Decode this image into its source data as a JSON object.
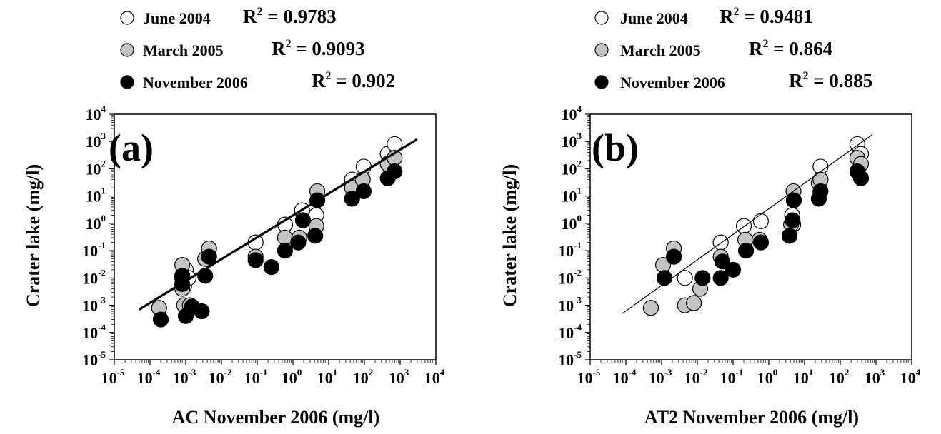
{
  "chart_data": [
    {
      "type": "scatter",
      "panel_label": "(a)",
      "xlabel": "AC November 2006 (mg/l)",
      "ylabel": "Crater lake (mg/l)",
      "x_scale": "log",
      "y_scale": "log",
      "xlim": [
        1e-05,
        10000
      ],
      "ylim": [
        1e-05,
        10000
      ],
      "x_ticks": [
        {
          "base": "10",
          "exp": "-5",
          "value": 1e-05
        },
        {
          "base": "10",
          "exp": "-4",
          "value": 0.0001
        },
        {
          "base": "10",
          "exp": "-3",
          "value": 0.001
        },
        {
          "base": "10",
          "exp": "-2",
          "value": 0.01
        },
        {
          "base": "10",
          "exp": "-1",
          "value": 0.1
        },
        {
          "base": "10",
          "exp": "0",
          "value": 1
        },
        {
          "base": "10",
          "exp": "1",
          "value": 10
        },
        {
          "base": "10",
          "exp": "2",
          "value": 100
        },
        {
          "base": "10",
          "exp": "3",
          "value": 1000
        },
        {
          "base": "10",
          "exp": "4",
          "value": 10000
        }
      ],
      "y_ticks": [
        {
          "base": "10",
          "exp": "-5",
          "value": 1e-05
        },
        {
          "base": "10",
          "exp": "-4",
          "value": 0.0001
        },
        {
          "base": "10",
          "exp": "-3",
          "value": 0.001
        },
        {
          "base": "10",
          "exp": "-2",
          "value": 0.01
        },
        {
          "base": "10",
          "exp": "-1",
          "value": 0.1
        },
        {
          "base": "10",
          "exp": "0",
          "value": 1
        },
        {
          "base": "10",
          "exp": "1",
          "value": 10
        },
        {
          "base": "10",
          "exp": "2",
          "value": 100
        },
        {
          "base": "10",
          "exp": "3",
          "value": 1000
        },
        {
          "base": "10",
          "exp": "4",
          "value": 10000
        }
      ],
      "legend_entries": [
        {
          "label": "June 2004",
          "r2_prefix": "R",
          "r2_sup": "2",
          "r2_value": " = 0.9783",
          "fill": "#ffffff"
        },
        {
          "label": "March 2005",
          "r2_prefix": "R",
          "r2_sup": "2",
          "r2_value": " = 0.9093",
          "fill": "#c4c4c4"
        },
        {
          "label": "November 2006",
          "r2_prefix": "R",
          "r2_sup": "2",
          "r2_value": " = 0.902",
          "fill": "#000000"
        }
      ],
      "fit_line": {
        "x": [
          5e-05,
          3000
        ],
        "y": [
          0.0007,
          1200
        ],
        "style": "thick"
      },
      "series": [
        {
          "name": "June 2004",
          "fill": "#ffffff",
          "points": [
            [
              0.0008,
              0.01
            ],
            [
              0.001,
              0.02
            ],
            [
              0.0009,
              0.005
            ],
            [
              0.0012,
              0.01
            ],
            [
              0.09,
              0.2
            ],
            [
              0.6,
              0.9
            ],
            [
              1.8,
              3
            ],
            [
              4.5,
              2
            ],
            [
              45,
              40
            ],
            [
              95,
              120
            ],
            [
              450,
              350
            ],
            [
              700,
              800
            ]
          ]
        },
        {
          "name": "March 2005",
          "fill": "#c4c4c4",
          "points": [
            [
              0.00018,
              0.0008
            ],
            [
              0.0008,
              0.03
            ],
            [
              0.0008,
              0.004
            ],
            [
              0.0009,
              0.001
            ],
            [
              0.0013,
              0.001
            ],
            [
              0.0035,
              0.05
            ],
            [
              0.0045,
              0.12
            ],
            [
              0.09,
              0.06
            ],
            [
              0.6,
              0.3
            ],
            [
              1.5,
              0.3
            ],
            [
              4.5,
              0.8
            ],
            [
              4.8,
              15
            ],
            [
              45,
              20
            ],
            [
              90,
              40
            ],
            [
              450,
              150
            ],
            [
              700,
              250
            ]
          ]
        },
        {
          "name": "November 2006",
          "fill": "#000000",
          "points": [
            [
              0.0002,
              0.0003
            ],
            [
              0.0008,
              0.006
            ],
            [
              0.0008,
              0.012
            ],
            [
              0.001,
              0.0004
            ],
            [
              0.0015,
              0.0009
            ],
            [
              0.0028,
              0.0006
            ],
            [
              0.0035,
              0.012
            ],
            [
              0.0045,
              0.06
            ],
            [
              0.09,
              0.045
            ],
            [
              0.25,
              0.025
            ],
            [
              0.6,
              0.1
            ],
            [
              1.4,
              0.2
            ],
            [
              1.9,
              1.3
            ],
            [
              4.2,
              0.35
            ],
            [
              4.8,
              7
            ],
            [
              45,
              8
            ],
            [
              95,
              15
            ],
            [
              450,
              45
            ],
            [
              700,
              80
            ]
          ]
        }
      ]
    },
    {
      "type": "scatter",
      "panel_label": "(b)",
      "xlabel": "AT2 November 2006 (mg/l)",
      "ylabel": "Crater lake (mg/l)",
      "x_scale": "log",
      "y_scale": "log",
      "xlim": [
        1e-05,
        10000
      ],
      "ylim": [
        1e-05,
        10000
      ],
      "x_ticks": [
        {
          "base": "10",
          "exp": "-5",
          "value": 1e-05
        },
        {
          "base": "10",
          "exp": "-4",
          "value": 0.0001
        },
        {
          "base": "10",
          "exp": "-3",
          "value": 0.001
        },
        {
          "base": "10",
          "exp": "-2",
          "value": 0.01
        },
        {
          "base": "10",
          "exp": "-1",
          "value": 0.1
        },
        {
          "base": "10",
          "exp": "0",
          "value": 1
        },
        {
          "base": "10",
          "exp": "1",
          "value": 10
        },
        {
          "base": "10",
          "exp": "2",
          "value": 100
        },
        {
          "base": "10",
          "exp": "3",
          "value": 1000
        },
        {
          "base": "10",
          "exp": "4",
          "value": 10000
        }
      ],
      "y_ticks": [
        {
          "base": "10",
          "exp": "-5",
          "value": 1e-05
        },
        {
          "base": "10",
          "exp": "-4",
          "value": 0.0001
        },
        {
          "base": "10",
          "exp": "-3",
          "value": 0.001
        },
        {
          "base": "10",
          "exp": "-2",
          "value": 0.01
        },
        {
          "base": "10",
          "exp": "-1",
          "value": 0.1
        },
        {
          "base": "10",
          "exp": "0",
          "value": 1
        },
        {
          "base": "10",
          "exp": "1",
          "value": 10
        },
        {
          "base": "10",
          "exp": "2",
          "value": 100
        },
        {
          "base": "10",
          "exp": "3",
          "value": 1000
        },
        {
          "base": "10",
          "exp": "4",
          "value": 10000
        }
      ],
      "legend_entries": [
        {
          "label": "June 2004",
          "r2_prefix": "R",
          "r2_sup": "2",
          "r2_value": " = 0.9481",
          "fill": "#ffffff"
        },
        {
          "label": "March 2005",
          "r2_prefix": "R",
          "r2_sup": "2",
          "r2_value": " = 0.864",
          "fill": "#c4c4c4"
        },
        {
          "label": "November 2006",
          "r2_prefix": "R",
          "r2_sup": "2",
          "r2_value": " = 0.885",
          "fill": "#000000"
        }
      ],
      "fit_line": {
        "x": [
          8e-05,
          800
        ],
        "y": [
          0.0005,
          1800
        ],
        "style": "thin"
      },
      "series": [
        {
          "name": "June 2004",
          "fill": "#ffffff",
          "points": [
            [
              0.0045,
              0.01
            ],
            [
              0.045,
              0.2
            ],
            [
              0.2,
              0.8
            ],
            [
              0.6,
              1.2
            ],
            [
              4.5,
              2
            ],
            [
              4.8,
              0.9
            ],
            [
              28,
              120
            ],
            [
              300,
              800
            ],
            [
              380,
              350
            ]
          ]
        },
        {
          "name": "March 2005",
          "fill": "#c4c4c4",
          "points": [
            [
              0.0005,
              0.0008
            ],
            [
              0.0011,
              0.03
            ],
            [
              0.0022,
              0.12
            ],
            [
              0.0045,
              0.001
            ],
            [
              0.008,
              0.0012
            ],
            [
              0.012,
              0.004
            ],
            [
              0.045,
              0.06
            ],
            [
              0.22,
              0.25
            ],
            [
              0.55,
              0.25
            ],
            [
              4.2,
              0.9
            ],
            [
              4.9,
              15
            ],
            [
              25,
              30
            ],
            [
              28,
              40
            ],
            [
              300,
              250
            ],
            [
              380,
              150
            ]
          ]
        },
        {
          "name": "November 2006",
          "fill": "#000000",
          "points": [
            [
              0.0012,
              0.01
            ],
            [
              0.0022,
              0.06
            ],
            [
              0.014,
              0.01
            ],
            [
              0.045,
              0.01
            ],
            [
              0.05,
              0.04
            ],
            [
              0.1,
              0.02
            ],
            [
              0.23,
              0.1
            ],
            [
              0.6,
              0.2
            ],
            [
              3.8,
              0.35
            ],
            [
              4.6,
              1.3
            ],
            [
              5,
              7
            ],
            [
              25,
              8
            ],
            [
              28,
              15
            ],
            [
              300,
              80
            ],
            [
              380,
              45
            ]
          ]
        }
      ]
    }
  ]
}
